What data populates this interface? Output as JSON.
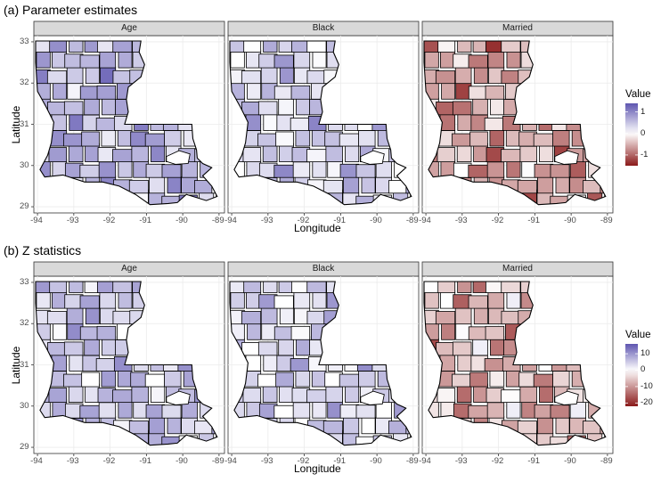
{
  "chart_data": [
    {
      "type": "map",
      "title": "(a) Parameter estimates",
      "facets": [
        "Age",
        "Black",
        "Married"
      ],
      "xlabel": "Longitude",
      "ylabel": "Latitude",
      "x_ticks": [
        "-94",
        "-93",
        "-92",
        "-91",
        "-90",
        "-89"
      ],
      "y_ticks": [
        "29",
        "30",
        "31",
        "32",
        "33"
      ],
      "xlim": [
        -94.1,
        -88.85
      ],
      "ylim": [
        28.85,
        33.15
      ],
      "legend": {
        "title": "Value",
        "position": "right",
        "labels": [
          "1",
          "0",
          "-1"
        ],
        "breaks": [
          1,
          0,
          -1
        ],
        "range": [
          -1.5,
          1.4
        ],
        "colors": {
          "low": "#8b1a1a",
          "mid": "#ffffff",
          "high": "#5e55b0"
        }
      },
      "grid": true
    },
    {
      "type": "map",
      "title": "(b) Z statistics",
      "facets": [
        "Age",
        "Black",
        "Married"
      ],
      "xlabel": "Longitude",
      "ylabel": "Latitude",
      "x_ticks": [
        "-94",
        "-93",
        "-92",
        "-91",
        "-90",
        "-89"
      ],
      "y_ticks": [
        "29",
        "30",
        "31",
        "32",
        "33"
      ],
      "xlim": [
        -94.1,
        -88.85
      ],
      "ylim": [
        28.85,
        33.15
      ],
      "legend": {
        "title": "Value",
        "position": "right",
        "labels": [
          "10",
          "0",
          "-10",
          "-20"
        ],
        "breaks": [
          10,
          0,
          -10,
          -20
        ],
        "range": [
          -22,
          16
        ],
        "colors": {
          "low": "#8b1a1a",
          "mid": "#ffffff",
          "high": "#5e55b0"
        }
      },
      "grid": true
    }
  ]
}
